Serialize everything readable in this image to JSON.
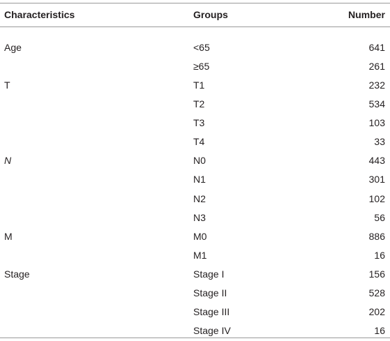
{
  "table": {
    "header": [
      "Characteristics",
      "Groups",
      "Number"
    ],
    "groups": [
      {
        "characteristic": "Age",
        "rows": [
          {
            "group": "<65",
            "number": 641
          },
          {
            "group": "≥65",
            "number": 261
          }
        ]
      },
      {
        "characteristic": "T",
        "rows": [
          {
            "group": "T1",
            "number": 232
          },
          {
            "group": "T2",
            "number": 534
          },
          {
            "group": "T3",
            "number": 103
          },
          {
            "group": "T4",
            "number": 33
          }
        ]
      },
      {
        "characteristic": "N",
        "rows": [
          {
            "group": "N0",
            "number": 443
          },
          {
            "group": "N1",
            "number": 301
          },
          {
            "group": "N2",
            "number": 102
          },
          {
            "group": "N3",
            "number": 56
          }
        ]
      },
      {
        "characteristic": "M",
        "rows": [
          {
            "group": "M0",
            "number": 886
          },
          {
            "group": "M1",
            "number": 16
          }
        ]
      },
      {
        "characteristic": "Stage",
        "rows": [
          {
            "group": "Stage I",
            "number": 156
          },
          {
            "group": "Stage II",
            "number": 528
          },
          {
            "group": "Stage III",
            "number": 202
          },
          {
            "group": "Stage IV",
            "number": 16
          }
        ]
      }
    ]
  }
}
